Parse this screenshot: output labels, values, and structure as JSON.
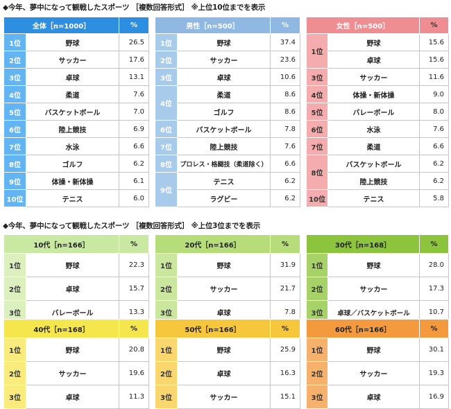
{
  "section1_title": "◆今年、夢中になって観戦したスポーツ ［複数回答形式］ ※上位10位までを表示",
  "section2_title": "◆今年、夢中になって観戦したスポーツ ［複数回答形式］ ※上位3位までを表示",
  "percent_label": "%",
  "top10": [
    {
      "id": "all",
      "header": "全体［n=1000］",
      "color_header": "#2e8fe0",
      "color_rank": "#62b4f2",
      "rows": [
        {
          "rank": "1位",
          "name": "野球",
          "value": "26.5"
        },
        {
          "rank": "2位",
          "name": "サッカー",
          "value": "17.6"
        },
        {
          "rank": "3位",
          "name": "卓球",
          "value": "13.1"
        },
        {
          "rank": "4位",
          "name": "柔道",
          "value": "7.6"
        },
        {
          "rank": "5位",
          "name": "バスケットボール",
          "value": "7.0"
        },
        {
          "rank": "6位",
          "name": "陸上競技",
          "value": "6.9"
        },
        {
          "rank": "7位",
          "name": "水泳",
          "value": "6.6"
        },
        {
          "rank": "8位",
          "name": "ゴルフ",
          "value": "6.2"
        },
        {
          "rank": "9位",
          "name": "体操・新体操",
          "value": "6.1"
        },
        {
          "rank": "10位",
          "name": "テニス",
          "value": "6.0"
        }
      ]
    },
    {
      "id": "male",
      "header": "男性［n=500］",
      "color_header": "#8fb8e2",
      "color_rank": "#a9cbeb",
      "rows": [
        {
          "rank": "1位",
          "name": "野球",
          "value": "37.4"
        },
        {
          "rank": "2位",
          "name": "サッカー",
          "value": "23.6"
        },
        {
          "rank": "3位",
          "name": "卓球",
          "value": "10.6"
        },
        {
          "rank": "4位",
          "name": "柔道",
          "value": "8.6"
        },
        {
          "rank": "",
          "name": "ゴルフ",
          "value": "8.6"
        },
        {
          "rank": "6位",
          "name": "バスケットボール",
          "value": "7.8"
        },
        {
          "rank": "7位",
          "name": "陸上競技",
          "value": "7.6"
        },
        {
          "rank": "8位",
          "name": "プロレス・格闘技（柔道除く）",
          "value": "6.6"
        },
        {
          "rank": "9位",
          "name": "テニス",
          "value": "6.2"
        },
        {
          "rank": "",
          "name": "ラグビー",
          "value": "6.2"
        }
      ]
    },
    {
      "id": "female",
      "header": "女性［n=500］",
      "color_header": "#ef8e92",
      "color_rank": "#f4acae",
      "rows": [
        {
          "rank": "1位",
          "name": "野球",
          "value": "15.6"
        },
        {
          "rank": "",
          "name": "卓球",
          "value": "15.6"
        },
        {
          "rank": "3位",
          "name": "サッカー",
          "value": "11.6"
        },
        {
          "rank": "4位",
          "name": "体操・新体操",
          "value": "9.0"
        },
        {
          "rank": "5位",
          "name": "バレーボール",
          "value": "8.0"
        },
        {
          "rank": "6位",
          "name": "水泳",
          "value": "7.6"
        },
        {
          "rank": "7位",
          "name": "柔道",
          "value": "6.6"
        },
        {
          "rank": "8位",
          "name": "バスケットボール",
          "value": "6.2"
        },
        {
          "rank": "",
          "name": "陸上競技",
          "value": "6.2"
        },
        {
          "rank": "10位",
          "name": "テニス",
          "value": "5.8"
        }
      ]
    }
  ],
  "age": [
    {
      "id": "10s",
      "header": "10代［n=166］",
      "color_header": "#c9e8a2",
      "color_rank": "#dcf0bf",
      "rows": [
        {
          "rank": "1位",
          "name": "野球",
          "value": "22.3"
        },
        {
          "rank": "2位",
          "name": "卓球",
          "value": "15.7"
        },
        {
          "rank": "3位",
          "name": "バレーボール",
          "value": "13.3"
        }
      ]
    },
    {
      "id": "20s",
      "header": "20代［n=166］",
      "color_header": "#b6dd7a",
      "color_rank": "#cbe69d",
      "rows": [
        {
          "rank": "1位",
          "name": "野球",
          "value": "31.9"
        },
        {
          "rank": "2位",
          "name": "サッカー",
          "value": "21.7"
        },
        {
          "rank": "3位",
          "name": "卓球",
          "value": "7.8"
        }
      ]
    },
    {
      "id": "30s",
      "header": "30代［n=168］",
      "color_header": "#8cc43e",
      "color_rank": "#a7d268",
      "rows": [
        {
          "rank": "1位",
          "name": "野球",
          "value": "28.0"
        },
        {
          "rank": "2位",
          "name": "サッカー",
          "value": "17.3"
        },
        {
          "rank": "3位",
          "name": "卓球／バスケットボール",
          "value": "10.7"
        }
      ]
    },
    {
      "id": "40s",
      "header": "40代［n=168］",
      "color_header": "#f6e64d",
      "color_rank": "#f9ec7c",
      "rows": [
        {
          "rank": "1位",
          "name": "野球",
          "value": "20.8"
        },
        {
          "rank": "2位",
          "name": "サッカー",
          "value": "19.6"
        },
        {
          "rank": "3位",
          "name": "卓球",
          "value": "11.3"
        }
      ]
    },
    {
      "id": "50s",
      "header": "50代［n=166］",
      "color_header": "#f6c73d",
      "color_rank": "#f9d66e",
      "rows": [
        {
          "rank": "1位",
          "name": "野球",
          "value": "25.9"
        },
        {
          "rank": "2位",
          "name": "卓球",
          "value": "16.3"
        },
        {
          "rank": "3位",
          "name": "サッカー",
          "value": "15.1"
        }
      ]
    },
    {
      "id": "60s",
      "header": "60代［n=166］",
      "color_header": "#f39a3e",
      "color_rank": "#f6b16d",
      "rows": [
        {
          "rank": "1位",
          "name": "野球",
          "value": "30.1"
        },
        {
          "rank": "2位",
          "name": "サッカー",
          "value": "19.3"
        },
        {
          "rank": "3位",
          "name": "卓球",
          "value": "16.9"
        }
      ]
    }
  ]
}
